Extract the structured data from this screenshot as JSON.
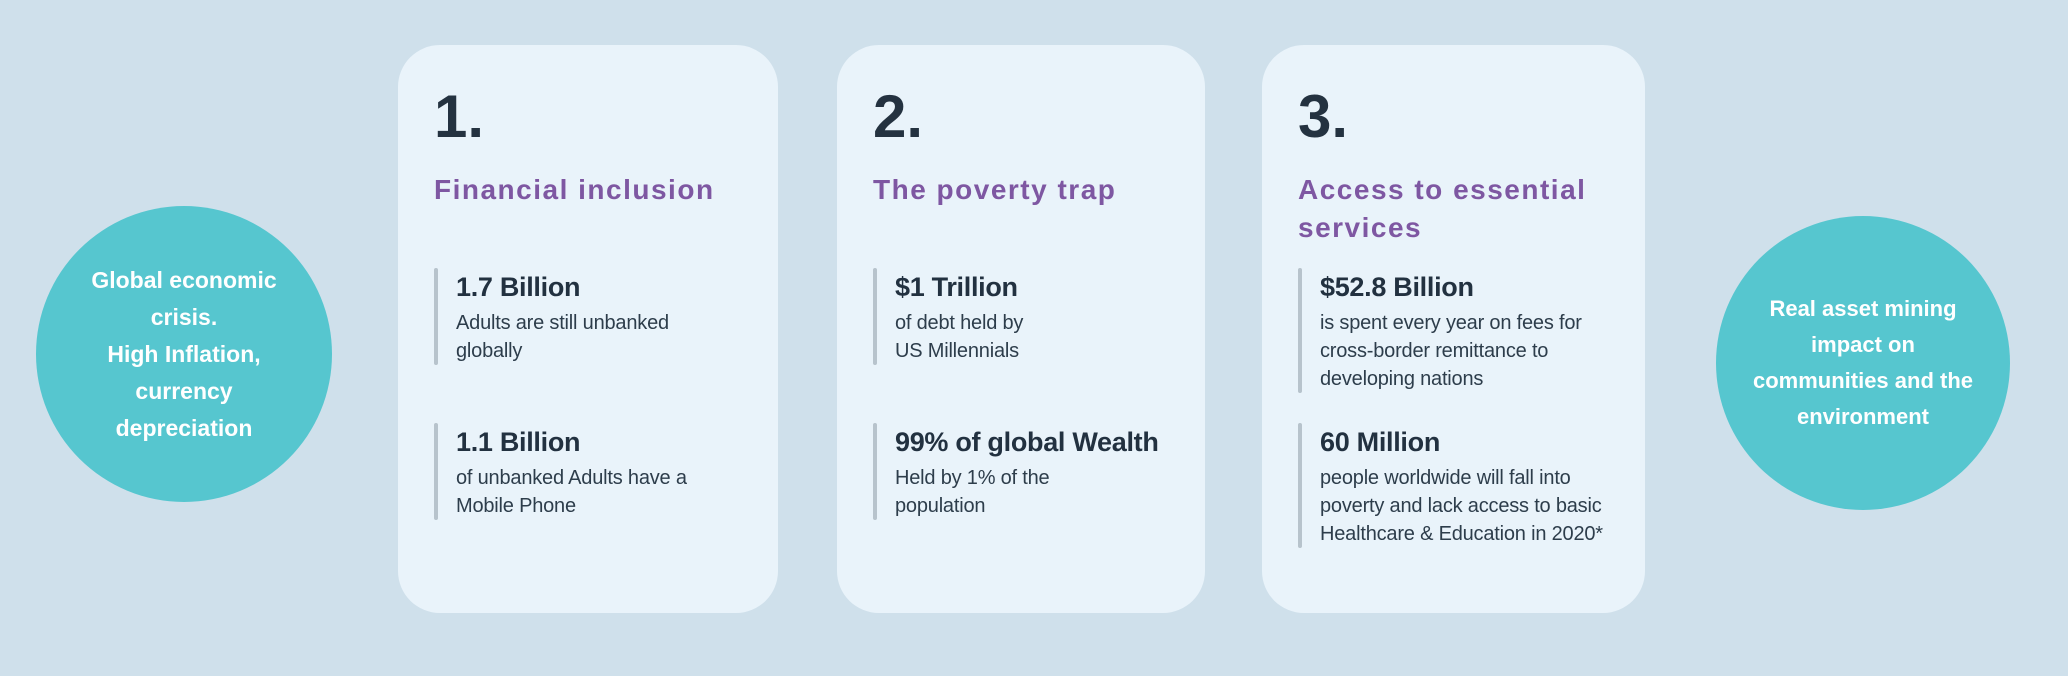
{
  "colors": {
    "background": "#cfe0eb",
    "card_background": "#e9f3fa",
    "bubble_teal": "#56c6cf",
    "heading_purple": "#7e57a2",
    "number_navy": "#243240",
    "body_text": "#2d3d4b",
    "stat_bar_gray": "#b7c3cc",
    "bubble_text": "#ffffff"
  },
  "left_bubble": {
    "text": "Global economic\ncrisis.\nHigh Inflation,\ncurrency\ndepreciation"
  },
  "right_bubble": {
    "text": "Real asset  mining\nimpact on\ncommunities and the\nenvironment"
  },
  "cards": [
    {
      "number": "1.",
      "title": "Financial inclusion",
      "stats": [
        {
          "value": "1.7 Billion",
          "desc": "Adults are still unbanked\nglobally"
        },
        {
          "value": "1.1 Billion",
          "desc": "of unbanked Adults have a\nMobile Phone"
        }
      ]
    },
    {
      "number": "2.",
      "title": "The poverty trap",
      "stats": [
        {
          "value": "$1 Trillion",
          "desc": "of debt held by\nUS Millennials"
        },
        {
          "value": "99% of global Wealth",
          "desc": "Held by 1% of the\npopulation"
        }
      ]
    },
    {
      "number": "3.",
      "title": "Access to essential\nservices",
      "stats": [
        {
          "value": "$52.8 Billion",
          "desc": "is spent every year on fees for\ncross-border remittance to\ndeveloping nations"
        },
        {
          "value": "60 Million",
          "desc": "people worldwide will fall into\npoverty and lack access to basic\nHealthcare & Education in 2020*"
        }
      ]
    }
  ]
}
